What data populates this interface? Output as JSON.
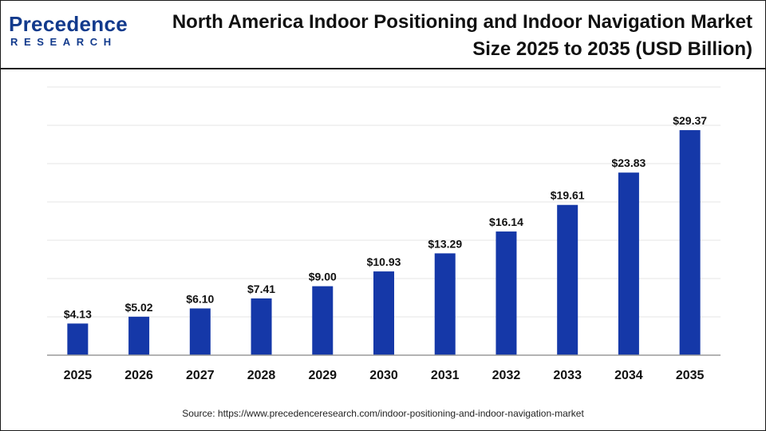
{
  "header": {
    "brand": "Precedence",
    "brand_sub": "RESEARCH",
    "title_line1": "North America Indoor Positioning and Indoor Navigation Market",
    "title_line2": "Size 2025 to 2035 (USD Billion)"
  },
  "colors": {
    "bar": "#1538a8",
    "grid": "#e6e6e6",
    "axis": "#9a9a9a",
    "brand": "#123a8c"
  },
  "chart_data": {
    "type": "bar",
    "title": "North America Indoor Positioning and Indoor Navigation Market Size 2025 to 2035 (USD Billion)",
    "xlabel": "",
    "ylabel": "",
    "categories": [
      "2025",
      "2026",
      "2027",
      "2028",
      "2029",
      "2030",
      "2031",
      "2032",
      "2033",
      "2034",
      "2035"
    ],
    "values": [
      4.13,
      5.02,
      6.1,
      7.41,
      9.0,
      10.93,
      13.29,
      16.14,
      19.61,
      23.83,
      29.37
    ],
    "value_labels": [
      "$4.13",
      "$5.02",
      "$6.10",
      "$7.41",
      "$9.00",
      "$10.93",
      "$13.29",
      "$16.14",
      "$19.61",
      "$23.83",
      "$29.37"
    ],
    "ylim": [
      0,
      35
    ],
    "grid": true,
    "legend": "none"
  },
  "footer": {
    "source": "Source: https://www.precedenceresearch.com/indoor-positioning-and-indoor-navigation-market"
  }
}
